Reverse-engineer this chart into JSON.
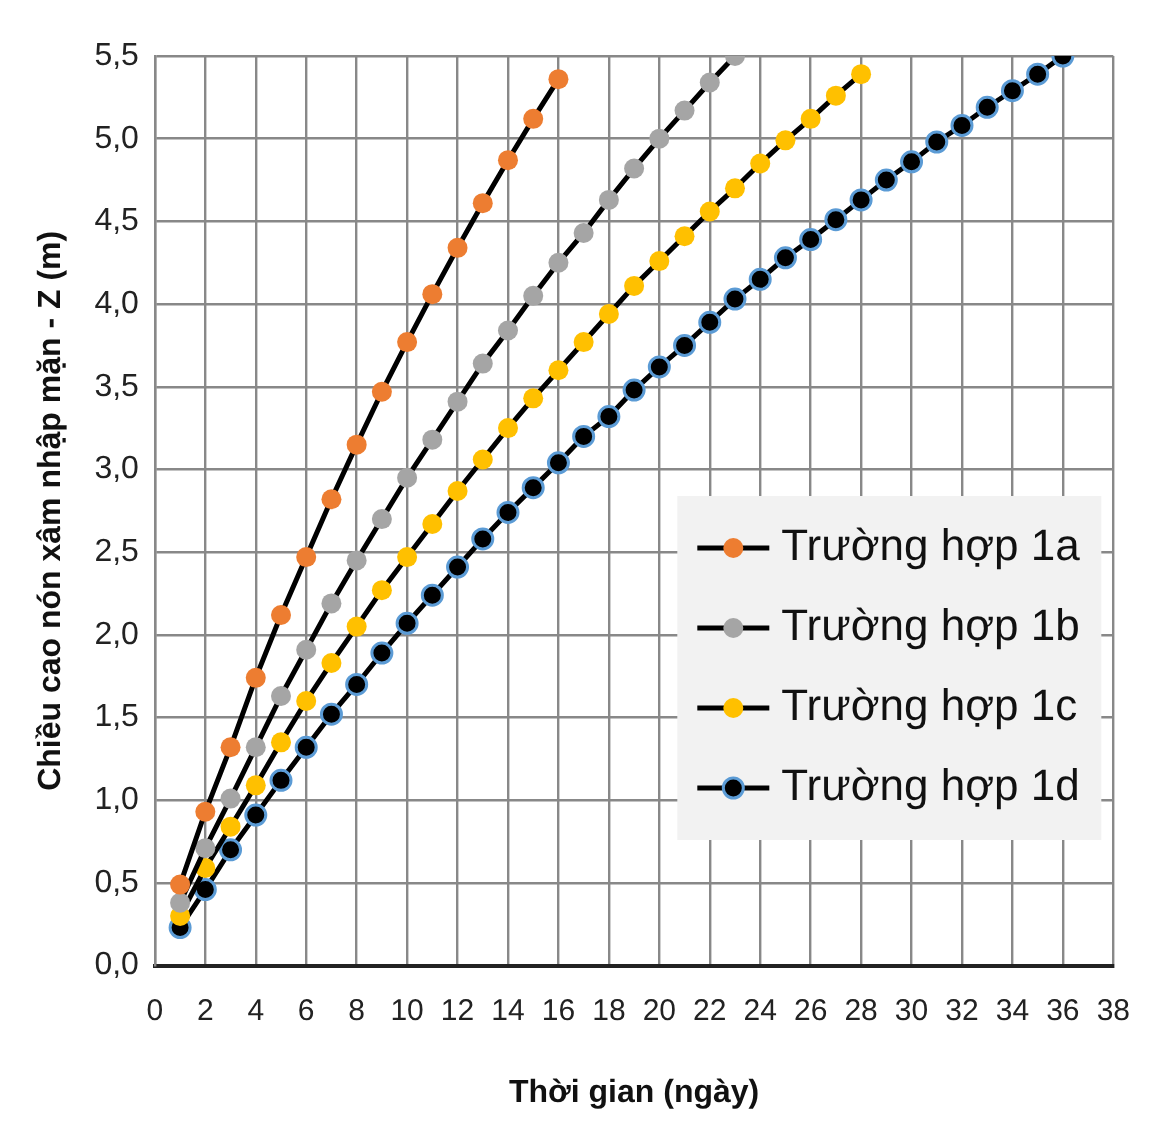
{
  "chart_data": {
    "type": "line",
    "xlabel": "Thời gian (ngày)",
    "ylabel": "Chiều cao nón xâm nhập mặn - Z (m)",
    "xlim": [
      0,
      38
    ],
    "xticks": [
      0,
      2,
      4,
      6,
      8,
      10,
      12,
      14,
      16,
      18,
      20,
      22,
      24,
      26,
      28,
      30,
      32,
      34,
      36,
      38
    ],
    "ylim": [
      0,
      5.5
    ],
    "yticks": [
      {
        "value": 0,
        "label": "0,0"
      },
      {
        "value": 0.5,
        "label": "0,5"
      },
      {
        "value": 1,
        "label": "1,0"
      },
      {
        "value": 1.5,
        "label": "1,5"
      },
      {
        "value": 2,
        "label": "2,0"
      },
      {
        "value": 2.5,
        "label": "2,5"
      },
      {
        "value": 3,
        "label": "3,0"
      },
      {
        "value": 3.5,
        "label": "3,5"
      },
      {
        "value": 4,
        "label": "4,0"
      },
      {
        "value": 4.5,
        "label": "4,5"
      },
      {
        "value": 5,
        "label": "5,0"
      },
      {
        "value": 5.5,
        "label": "5,5"
      }
    ],
    "grid": true,
    "legend": "right",
    "marker": "circle",
    "line_style": "solid",
    "series": [
      {
        "name": "Trường hợp 1a",
        "color": "#ed7d31",
        "x": [
          1,
          2,
          3,
          4,
          5,
          6,
          7,
          8,
          9,
          10,
          11,
          12,
          13,
          14,
          15,
          16
        ],
        "values": [
          0.49,
          0.93,
          1.32,
          1.74,
          2.12,
          2.47,
          2.82,
          3.15,
          3.47,
          3.77,
          4.06,
          4.34,
          4.61,
          4.87,
          5.12,
          5.36
        ]
      },
      {
        "name": "Trường hợp 1b",
        "color": "#a5a5a5",
        "x": [
          1,
          2,
          3,
          4,
          5,
          6,
          7,
          8,
          9,
          10,
          11,
          12,
          13,
          14,
          15,
          16,
          17,
          18,
          19,
          20,
          21,
          22,
          23
        ],
        "values": [
          0.38,
          0.71,
          1.01,
          1.32,
          1.63,
          1.91,
          2.19,
          2.45,
          2.7,
          2.95,
          3.18,
          3.41,
          3.64,
          3.84,
          4.05,
          4.25,
          4.43,
          4.63,
          4.82,
          5.0,
          5.17,
          5.34,
          5.5
        ]
      },
      {
        "name": "Trường hợp 1c",
        "color": "#ffc000",
        "x": [
          1,
          2,
          3,
          4,
          5,
          6,
          7,
          8,
          9,
          10,
          11,
          12,
          13,
          14,
          15,
          16,
          17,
          18,
          19,
          20,
          21,
          22,
          23,
          24,
          25,
          26,
          27,
          28
        ],
        "values": [
          0.3,
          0.59,
          0.84,
          1.09,
          1.35,
          1.6,
          1.83,
          2.05,
          2.27,
          2.47,
          2.67,
          2.87,
          3.06,
          3.25,
          3.43,
          3.6,
          3.77,
          3.94,
          4.11,
          4.26,
          4.41,
          4.56,
          4.7,
          4.85,
          4.99,
          5.12,
          5.26,
          5.39
        ]
      },
      {
        "name": "Trường hợp 1d",
        "color": "#000000",
        "x": [
          1,
          2,
          3,
          4,
          5,
          6,
          7,
          8,
          9,
          10,
          11,
          12,
          13,
          14,
          15,
          16,
          17,
          18,
          19,
          20,
          21,
          22,
          23,
          24,
          25,
          26,
          27,
          28,
          29,
          30,
          31,
          32,
          33,
          34,
          35,
          36
        ],
        "values": [
          0.23,
          0.46,
          0.7,
          0.91,
          1.12,
          1.32,
          1.52,
          1.7,
          1.89,
          2.07,
          2.24,
          2.41,
          2.58,
          2.74,
          2.89,
          3.04,
          3.2,
          3.32,
          3.48,
          3.62,
          3.75,
          3.89,
          4.03,
          4.15,
          4.28,
          4.39,
          4.51,
          4.63,
          4.75,
          4.86,
          4.98,
          5.08,
          5.19,
          5.29,
          5.39,
          5.5
        ]
      }
    ]
  }
}
